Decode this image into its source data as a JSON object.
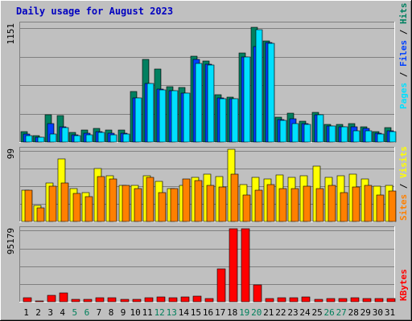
{
  "title": "Daily usage for August 2023",
  "colors": {
    "background": "#c0c0c0",
    "title": "#0000c0",
    "hits": "#008060",
    "files": "#0040ff",
    "pages": "#00e0ff",
    "visits": "#ffff00",
    "sites": "#ff8000",
    "kbytes": "#ff0000",
    "weekend_label": "#00805c"
  },
  "chart_data": [
    {
      "type": "bar",
      "panel": "hits-files-pages",
      "legend": [
        "Pages",
        "Files",
        "Hits"
      ],
      "ymax_label": "1151",
      "ylim": [
        0,
        1151
      ],
      "series": [
        {
          "name": "Hits",
          "values": [
            100,
            60,
            270,
            260,
            95,
            120,
            130,
            115,
            120,
            490,
            810,
            710,
            540,
            530,
            840,
            790,
            460,
            440,
            870,
            1120,
            990,
            240,
            280,
            200,
            290,
            170,
            170,
            180,
            150,
            100,
            140
          ]
        },
        {
          "name": "Files",
          "values": [
            80,
            50,
            180,
            150,
            70,
            90,
            100,
            90,
            90,
            430,
            570,
            520,
            500,
            480,
            810,
            760,
            430,
            420,
            830,
            930,
            970,
            220,
            230,
            180,
            270,
            160,
            150,
            150,
            130,
            90,
            110
          ]
        },
        {
          "name": "Pages",
          "values": [
            60,
            45,
            80,
            140,
            65,
            70,
            95,
            70,
            80,
            430,
            570,
            510,
            500,
            480,
            770,
            750,
            420,
            420,
            830,
            1100,
            960,
            210,
            180,
            170,
            270,
            160,
            150,
            110,
            110,
            80,
            100
          ]
        }
      ]
    },
    {
      "type": "bar",
      "panel": "visits-sites",
      "legend": [
        "Sites",
        "Visits"
      ],
      "ymax_label": "99",
      "ylim": [
        0,
        99
      ],
      "series": [
        {
          "name": "Visits",
          "values": [
            43,
            22,
            53,
            86,
            45,
            40,
            73,
            63,
            49,
            49,
            63,
            55,
            45,
            49,
            60,
            65,
            62,
            99,
            51,
            60,
            58,
            64,
            60,
            63,
            76,
            61,
            63,
            65,
            58,
            48,
            50
          ]
        },
        {
          "name": "Sites",
          "values": [
            43,
            19,
            48,
            53,
            39,
            34,
            62,
            58,
            49,
            45,
            60,
            40,
            45,
            58,
            56,
            50,
            47,
            65,
            36,
            43,
            51,
            45,
            45,
            48,
            45,
            49,
            40,
            47,
            50,
            36,
            42
          ]
        }
      ]
    },
    {
      "type": "bar",
      "panel": "kbytes",
      "legend": [
        "KBytes"
      ],
      "ymax_label": "95179",
      "ylim": [
        0,
        95179
      ],
      "series": [
        {
          "name": "KBytes",
          "values": [
            5500,
            1500,
            8500,
            11000,
            3500,
            3500,
            5500,
            5000,
            3000,
            3500,
            5500,
            6000,
            5000,
            6000,
            7500,
            4500,
            43000,
            95179,
            95179,
            22000,
            4500,
            5000,
            5500,
            6500,
            3500,
            4500,
            4500,
            5000,
            4000,
            4000,
            4500
          ]
        }
      ]
    }
  ],
  "x_labels": [
    "1",
    "2",
    "3",
    "4",
    "5",
    "6",
    "7",
    "8",
    "9",
    "10",
    "11",
    "12",
    "13",
    "14",
    "15",
    "16",
    "17",
    "18",
    "19",
    "20",
    "21",
    "22",
    "23",
    "24",
    "25",
    "26",
    "27",
    "28",
    "29",
    "30",
    "31"
  ],
  "weekend_days": [
    5,
    6,
    12,
    13,
    19,
    20,
    26,
    27
  ]
}
